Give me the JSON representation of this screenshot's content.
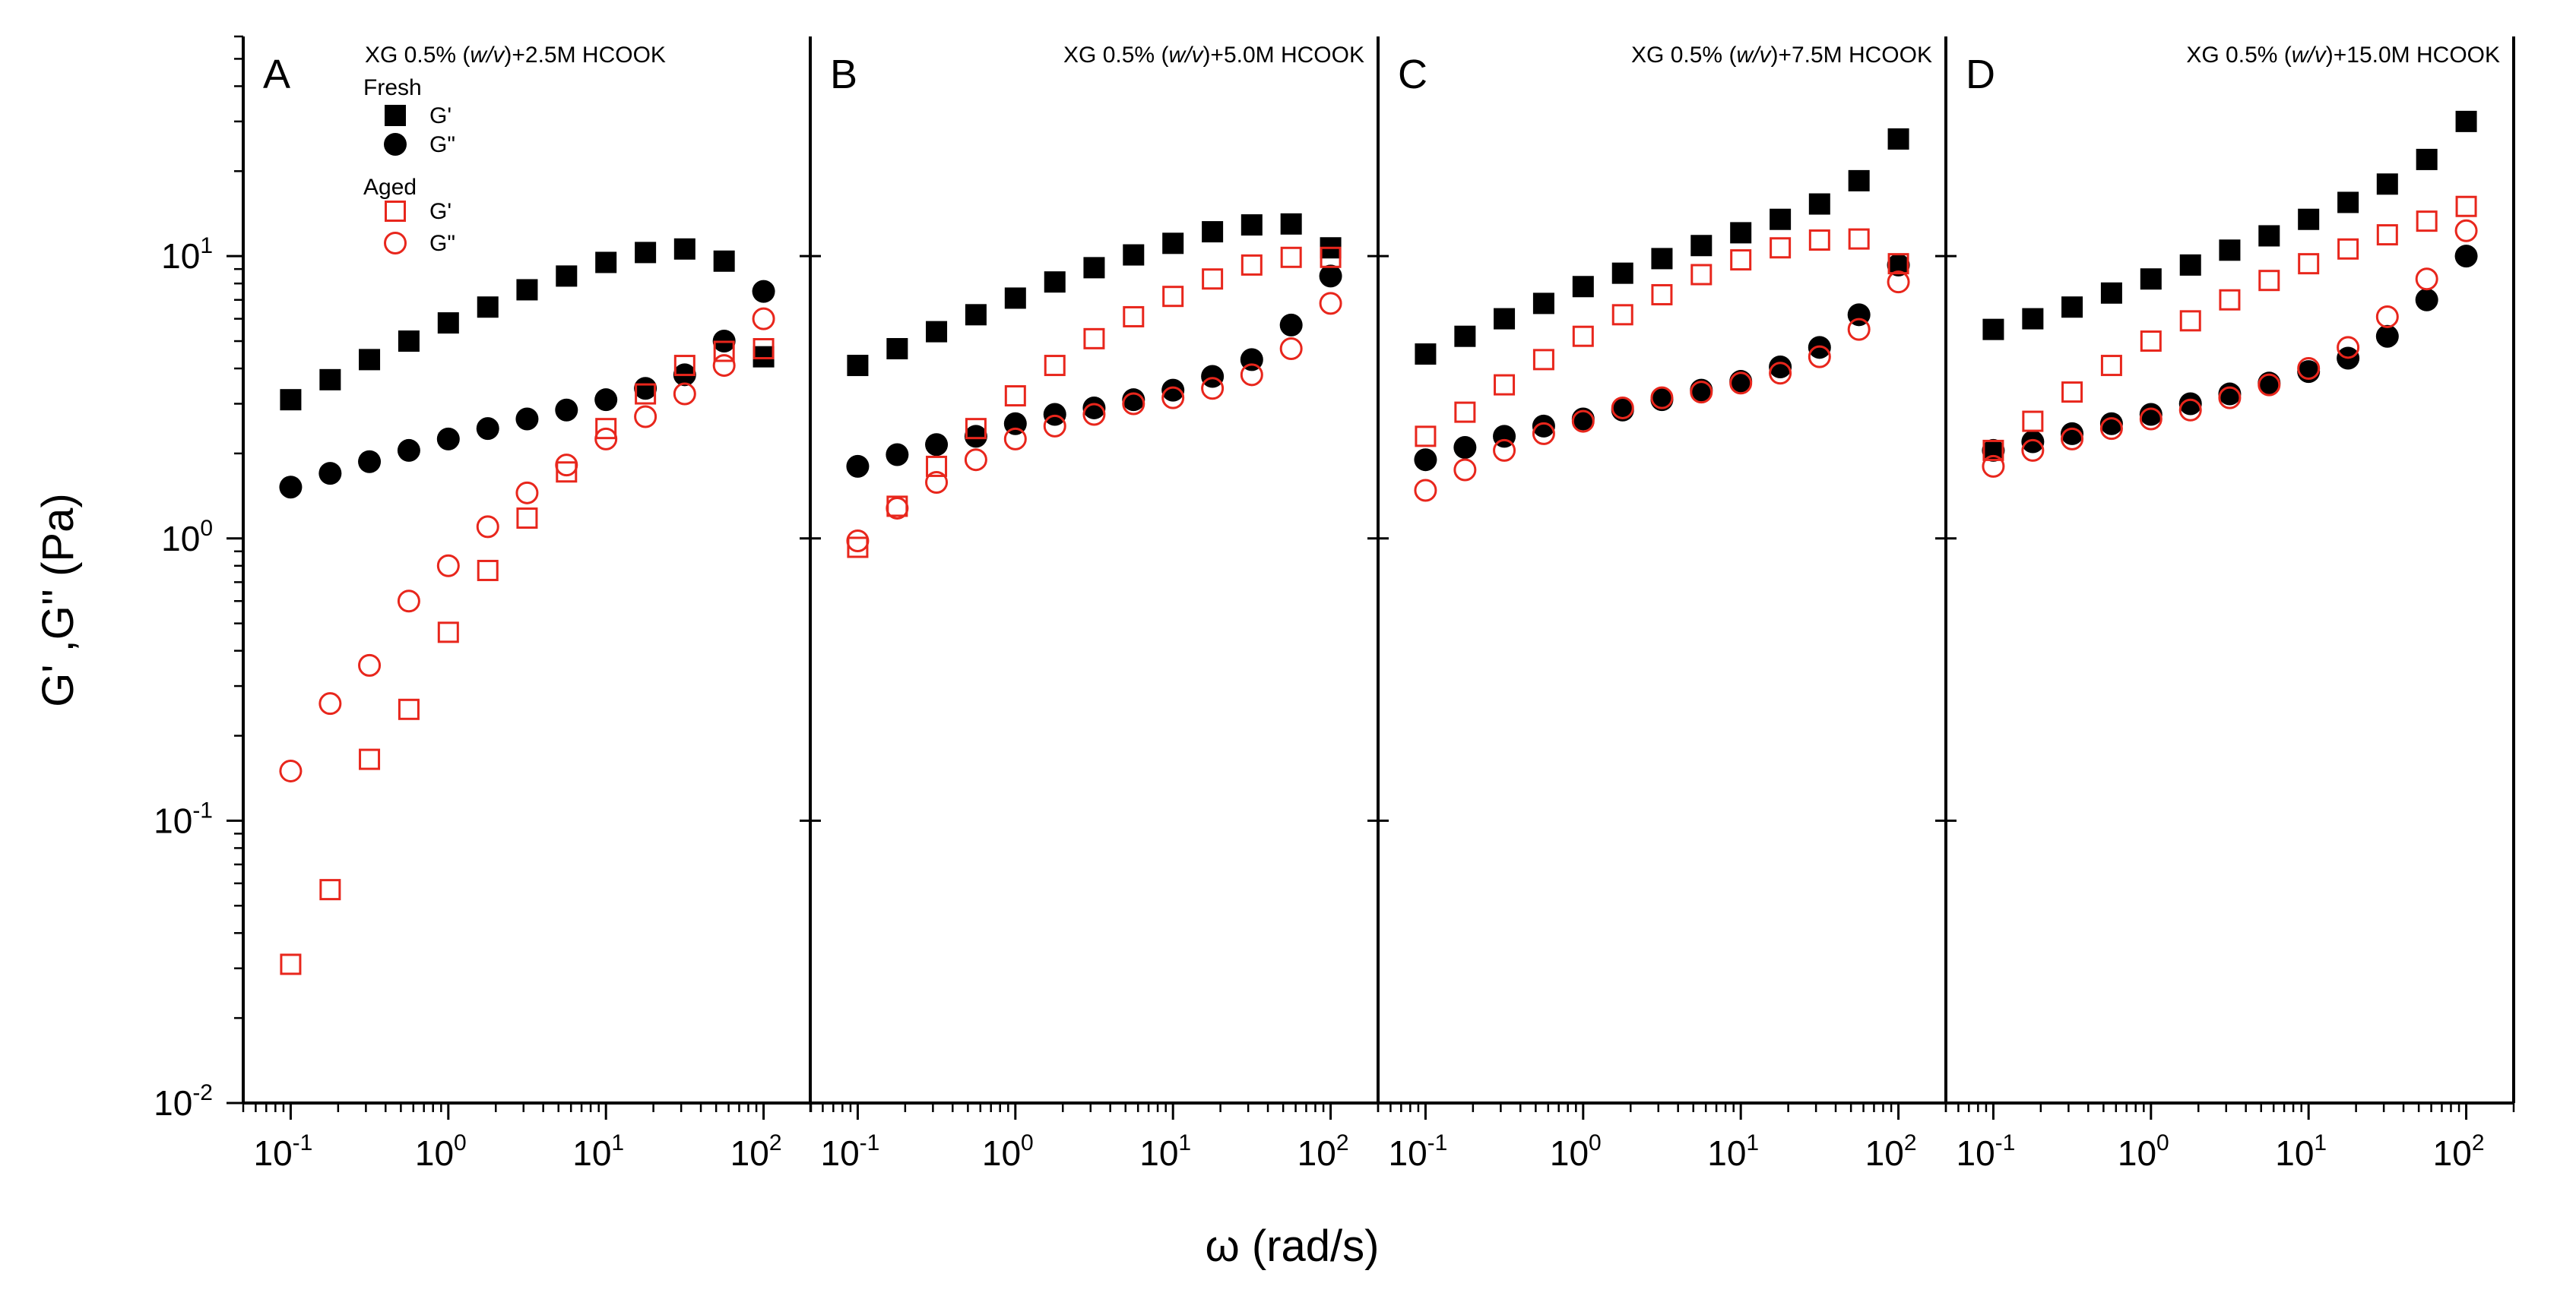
{
  "chart_data": {
    "type": "scatter",
    "xlabel": "ω (rad/s)",
    "ylabel": "G' ,G'' (Pa)",
    "xscale": "log",
    "yscale": "log",
    "xlim": [
      0.05,
      200
    ],
    "ylim": [
      0.01,
      60
    ],
    "x_ticks": [
      {
        "base": "10",
        "exp": "-1",
        "value": 0.1
      },
      {
        "base": "10",
        "exp": "0",
        "value": 1
      },
      {
        "base": "10",
        "exp": "1",
        "value": 10
      },
      {
        "base": "10",
        "exp": "2",
        "value": 100
      }
    ],
    "y_ticks": [
      {
        "base": "10",
        "exp": "-2",
        "value": 0.01
      },
      {
        "base": "10",
        "exp": "-1",
        "value": 0.1
      },
      {
        "base": "10",
        "exp": "0",
        "value": 1
      },
      {
        "base": "10",
        "exp": "1",
        "value": 10
      }
    ],
    "legend": {
      "placement": "top-left of panel A",
      "groups": [
        {
          "title": "Fresh",
          "entries": [
            {
              "label": "G'",
              "marker": "filled-square"
            },
            {
              "label": "G\"",
              "marker": "filled-circle"
            }
          ]
        },
        {
          "title": "Aged",
          "entries": [
            {
              "label": "G'",
              "marker": "open-square"
            },
            {
              "label": "G\"",
              "marker": "open-circle"
            }
          ]
        }
      ]
    },
    "colors": {
      "fresh": "#000000",
      "aged": "#e8261c"
    },
    "x": [
      0.1,
      0.178,
      0.316,
      0.562,
      1.0,
      1.78,
      3.16,
      5.62,
      10.0,
      17.8,
      31.6,
      56.2,
      100.0
    ],
    "panels": [
      {
        "letter": "A",
        "title_prefix": "XG 0.5% (",
        "title_italic": "w/v",
        "title_suffix": ")+2.5M HCOOK",
        "series": [
          {
            "name": "Fresh G'",
            "values": [
              3.1,
              3.65,
              4.3,
              5.0,
              5.8,
              6.6,
              7.6,
              8.5,
              9.5,
              10.3,
              10.6,
              9.6,
              4.4
            ]
          },
          {
            "name": "Fresh G\"",
            "values": [
              1.52,
              1.7,
              1.87,
              2.05,
              2.25,
              2.45,
              2.65,
              2.85,
              3.1,
              3.4,
              3.8,
              5.0,
              7.5
            ]
          },
          {
            "name": "Aged G'",
            "values": [
              0.031,
              0.057,
              0.165,
              0.248,
              0.465,
              0.77,
              1.18,
              1.72,
              2.45,
              3.25,
              4.1,
              4.6,
              4.7
            ]
          },
          {
            "name": "Aged G\"",
            "values": [
              0.15,
              0.26,
              0.355,
              0.6,
              0.8,
              1.1,
              1.45,
              1.82,
              2.25,
              2.7,
              3.25,
              4.1,
              6.0
            ]
          }
        ]
      },
      {
        "letter": "B",
        "title_prefix": "XG 0.5% (",
        "title_italic": "w/v",
        "title_suffix": ")+5.0M HCOOK",
        "series": [
          {
            "name": "Fresh G'",
            "values": [
              4.1,
              4.7,
              5.4,
              6.2,
              7.1,
              8.1,
              9.1,
              10.1,
              11.1,
              12.2,
              12.9,
              13.0,
              10.7
            ]
          },
          {
            "name": "Fresh G\"",
            "values": [
              1.8,
              1.98,
              2.15,
              2.3,
              2.55,
              2.75,
              2.9,
              3.1,
              3.35,
              3.75,
              4.3,
              5.7,
              8.5
            ]
          },
          {
            "name": "Aged G'",
            "values": [
              0.93,
              1.3,
              1.8,
              2.45,
              3.2,
              4.1,
              5.1,
              6.1,
              7.2,
              8.3,
              9.3,
              9.9,
              9.9
            ]
          },
          {
            "name": "Aged G\"",
            "values": [
              0.98,
              1.28,
              1.58,
              1.9,
              2.25,
              2.5,
              2.75,
              3.0,
              3.15,
              3.4,
              3.8,
              4.7,
              6.8
            ]
          }
        ]
      },
      {
        "letter": "C",
        "title_prefix": "XG 0.5% (",
        "title_italic": "w/v",
        "title_suffix": ")+7.5M HCOOK",
        "series": [
          {
            "name": "Fresh G'",
            "values": [
              4.5,
              5.2,
              6.0,
              6.8,
              7.8,
              8.7,
              9.8,
              10.9,
              12.1,
              13.5,
              15.3,
              18.5,
              26.0
            ]
          },
          {
            "name": "Fresh G\"",
            "values": [
              1.9,
              2.1,
              2.3,
              2.5,
              2.65,
              2.85,
              3.1,
              3.35,
              3.6,
              4.05,
              4.75,
              6.2,
              9.3
            ]
          },
          {
            "name": "Aged G'",
            "values": [
              2.3,
              2.8,
              3.5,
              4.3,
              5.2,
              6.2,
              7.3,
              8.6,
              9.7,
              10.7,
              11.4,
              11.5,
              9.4
            ]
          },
          {
            "name": "Aged G\"",
            "values": [
              1.48,
              1.75,
              2.05,
              2.35,
              2.6,
              2.9,
              3.15,
              3.3,
              3.55,
              3.85,
              4.4,
              5.5,
              8.1
            ]
          }
        ]
      },
      {
        "letter": "D",
        "title_prefix": "XG 0.5% (",
        "title_italic": "w/v",
        "title_suffix": ")+15.0M HCOOK",
        "series": [
          {
            "name": "Fresh G'",
            "values": [
              5.5,
              6.0,
              6.6,
              7.4,
              8.3,
              9.3,
              10.5,
              11.8,
              13.5,
              15.5,
              18.0,
              22.0,
              30.0
            ]
          },
          {
            "name": "Fresh G\"",
            "values": [
              2.05,
              2.2,
              2.35,
              2.55,
              2.75,
              3.0,
              3.25,
              3.55,
              3.9,
              4.35,
              5.2,
              7.0,
              10.0
            ]
          },
          {
            "name": "Aged G'",
            "values": [
              2.05,
              2.6,
              3.3,
              4.1,
              5.0,
              5.9,
              7.0,
              8.2,
              9.4,
              10.6,
              11.9,
              13.3,
              15.0
            ]
          },
          {
            "name": "Aged G\"",
            "values": [
              1.8,
              2.05,
              2.25,
              2.45,
              2.65,
              2.85,
              3.15,
              3.5,
              4.0,
              4.75,
              6.1,
              8.3,
              12.3
            ]
          }
        ]
      }
    ]
  }
}
